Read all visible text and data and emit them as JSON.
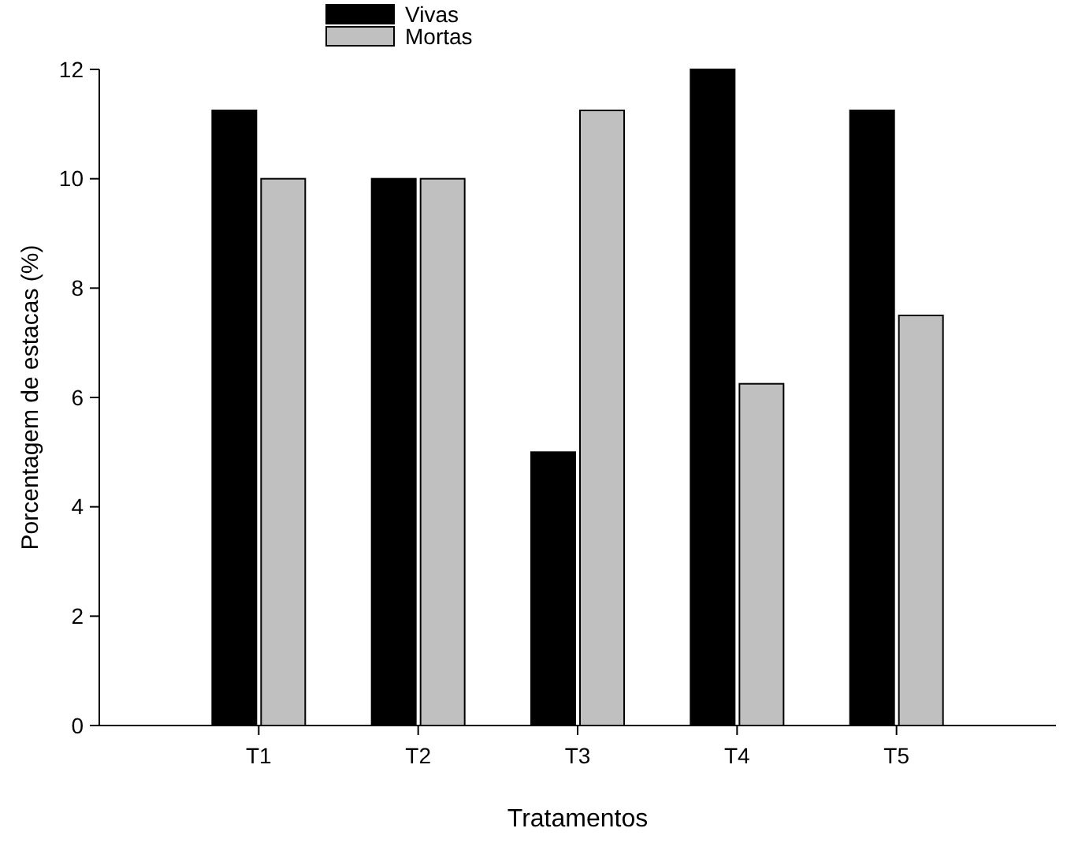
{
  "chart_data": {
    "type": "bar",
    "xlabel": "Tratamentos",
    "ylabel": "Porcentagem de estacas (%)",
    "categories": [
      "T1",
      "T2",
      "T3",
      "T4",
      "T5"
    ],
    "series": [
      {
        "name": "Vivas",
        "color": "#000000",
        "values": [
          11.25,
          10,
          5,
          12,
          11.25
        ]
      },
      {
        "name": "Mortas",
        "color": "#c0c0c0",
        "values": [
          10,
          10,
          11.25,
          6.25,
          7.5
        ]
      }
    ],
    "ylim": [
      0,
      12
    ],
    "yticks": [
      0,
      2,
      4,
      6,
      8,
      10,
      12
    ],
    "legend": "top",
    "grid": false
  }
}
